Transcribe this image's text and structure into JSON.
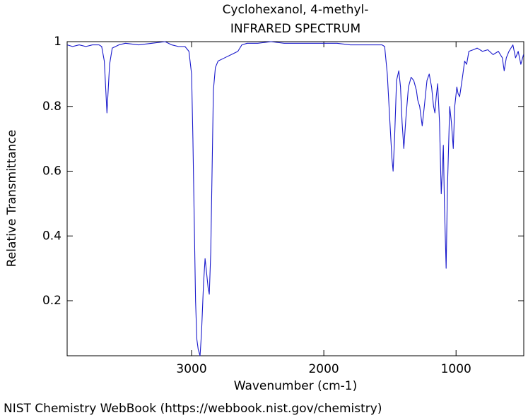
{
  "chart_data": {
    "type": "line",
    "title": "Cyclohexanol, 4-methyl-",
    "subtitle": "INFRARED SPECTRUM",
    "x_label": "Wavenumber (cm-1)",
    "y_label": "Relative Transmittance",
    "xlim": [
      3941,
      488
    ],
    "ylim": [
      0.03,
      1
    ],
    "xticks": [
      3000,
      2000,
      1000
    ],
    "yticks": [
      0.2,
      0.4,
      0.6,
      0.8,
      1
    ],
    "x": [
      3940,
      3900,
      3850,
      3800,
      3750,
      3700,
      3680,
      3660,
      3640,
      3620,
      3600,
      3550,
      3500,
      3400,
      3300,
      3200,
      3150,
      3100,
      3050,
      3020,
      3000,
      2990,
      2980,
      2970,
      2960,
      2950,
      2936,
      2925,
      2910,
      2898,
      2890,
      2875,
      2866,
      2855,
      2845,
      2835,
      2820,
      2800,
      2750,
      2700,
      2650,
      2620,
      2580,
      2500,
      2400,
      2300,
      2200,
      2100,
      2000,
      1900,
      1800,
      1700,
      1600,
      1560,
      1540,
      1520,
      1500,
      1485,
      1476,
      1465,
      1450,
      1433,
      1420,
      1408,
      1395,
      1380,
      1360,
      1340,
      1320,
      1300,
      1290,
      1275,
      1256,
      1240,
      1220,
      1203,
      1185,
      1170,
      1160,
      1150,
      1139,
      1125,
      1112,
      1104,
      1096,
      1088,
      1075,
      1065,
      1048,
      1035,
      1021,
      1010,
      994,
      985,
      973,
      955,
      935,
      920,
      903,
      870,
      840,
      800,
      760,
      720,
      680,
      650,
      636,
      620,
      600,
      570,
      550,
      530,
      510,
      490
    ],
    "series": [
      {
        "name": "Cyclohexanol, 4-methyl-",
        "color": "#1a1acc",
        "values": [
          0.99,
          0.985,
          0.99,
          0.985,
          0.99,
          0.99,
          0.985,
          0.94,
          0.78,
          0.93,
          0.98,
          0.99,
          0.995,
          0.99,
          0.995,
          1.0,
          0.99,
          0.985,
          0.985,
          0.97,
          0.9,
          0.7,
          0.45,
          0.2,
          0.08,
          0.05,
          0.03,
          0.1,
          0.25,
          0.33,
          0.3,
          0.24,
          0.22,
          0.35,
          0.6,
          0.85,
          0.92,
          0.94,
          0.95,
          0.96,
          0.97,
          0.99,
          0.995,
          0.995,
          1.0,
          0.995,
          0.995,
          0.995,
          0.995,
          0.995,
          0.99,
          0.99,
          0.99,
          0.99,
          0.985,
          0.9,
          0.75,
          0.64,
          0.6,
          0.7,
          0.88,
          0.91,
          0.86,
          0.75,
          0.67,
          0.76,
          0.86,
          0.89,
          0.88,
          0.85,
          0.82,
          0.8,
          0.74,
          0.8,
          0.88,
          0.9,
          0.86,
          0.8,
          0.78,
          0.83,
          0.87,
          0.75,
          0.53,
          0.6,
          0.68,
          0.5,
          0.3,
          0.55,
          0.8,
          0.75,
          0.67,
          0.8,
          0.86,
          0.84,
          0.83,
          0.88,
          0.94,
          0.93,
          0.97,
          0.975,
          0.98,
          0.97,
          0.975,
          0.96,
          0.97,
          0.95,
          0.91,
          0.95,
          0.97,
          0.99,
          0.95,
          0.97,
          0.93,
          0.96
        ]
      }
    ]
  },
  "credit": "NIST Chemistry WebBook (https://webbook.nist.gov/chemistry)"
}
